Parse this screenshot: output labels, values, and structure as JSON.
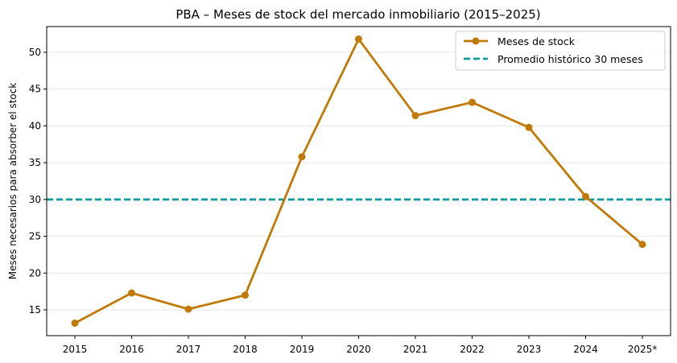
{
  "chart_data": {
    "type": "line",
    "title": "PBA – Meses de stock del mercado inmobiliario (2015–2025)",
    "xlabel": "",
    "ylabel": "Meses necesarios para absorber el stock",
    "categories": [
      "2015",
      "2016",
      "2017",
      "2018",
      "2019",
      "2020",
      "2021",
      "2022",
      "2023",
      "2024",
      "2025*"
    ],
    "series": [
      {
        "name": "Meses de stock",
        "color": "#c07a08",
        "marker": "circle",
        "values": [
          13.2,
          17.3,
          15.1,
          17.0,
          35.8,
          51.8,
          41.4,
          43.2,
          39.8,
          30.4,
          23.9
        ]
      }
    ],
    "reference_lines": [
      {
        "name": "Promedio histórico 30 meses",
        "value": 30,
        "color": "#0a9a9a",
        "style": "dashed"
      }
    ],
    "ylim": [
      11.5,
      53.5
    ],
    "yticks": [
      15,
      20,
      25,
      30,
      35,
      40,
      45,
      50
    ],
    "grid": "horizontal",
    "legend_position": "top-right"
  }
}
